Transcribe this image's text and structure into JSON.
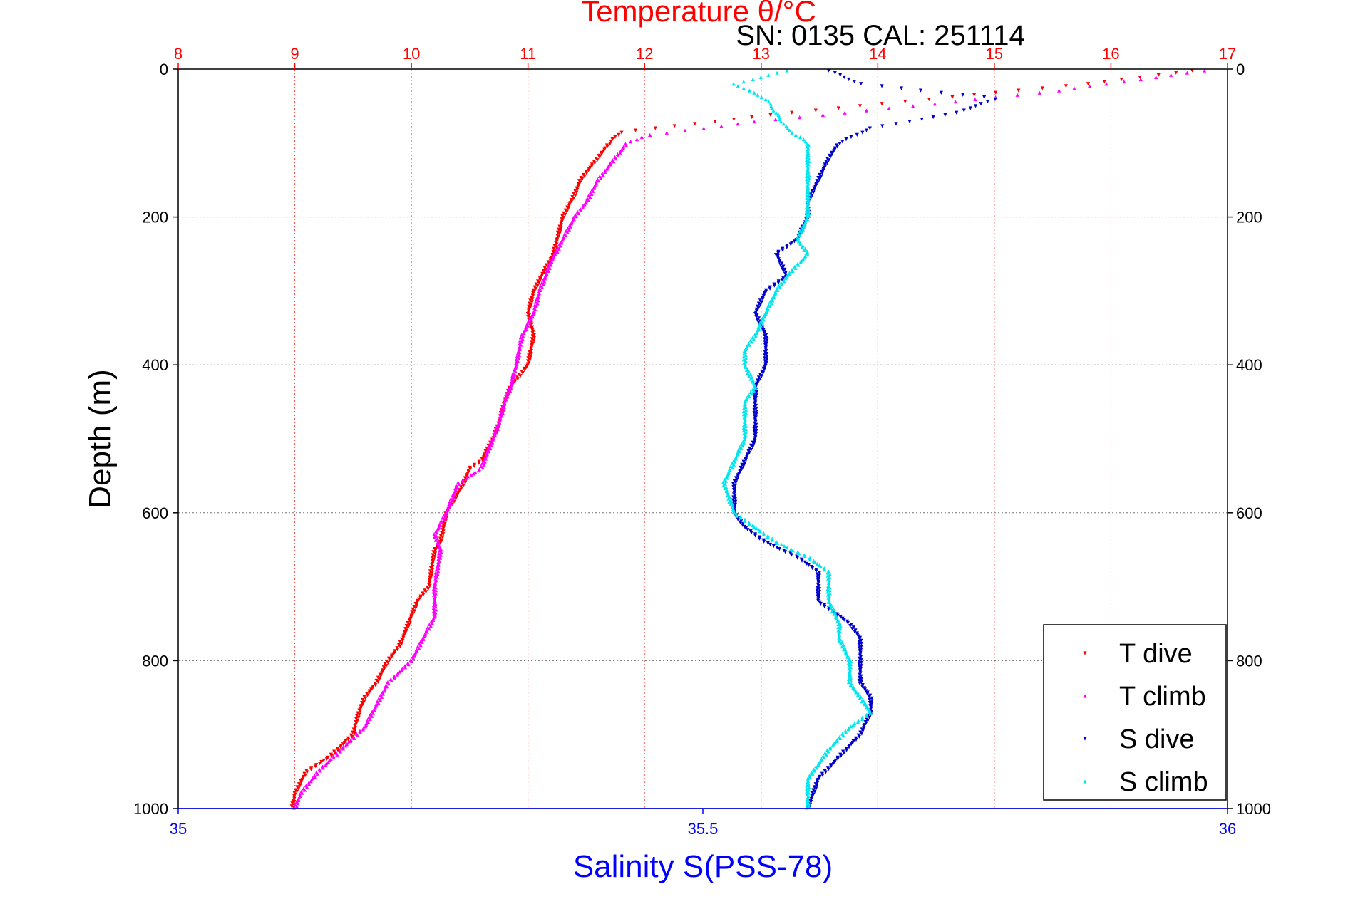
{
  "chart_data": {
    "type": "scatter",
    "title": "Temperature θ/°C",
    "subtitle": "SN: 0135  CAL: 251114",
    "xlabel_top": "Temperature θ/°C",
    "xlabel_bottom": "Salinity S(PSS-78)",
    "ylabel": "Depth (m)",
    "ylim": [
      1000,
      0
    ],
    "x_top_lim": [
      8,
      17
    ],
    "x_bottom_lim": [
      35,
      36
    ],
    "x_top_ticks": [
      8,
      9,
      10,
      11,
      12,
      13,
      14,
      15,
      16,
      17
    ],
    "x_bottom_ticks": [
      "35",
      "35.5",
      "36"
    ],
    "x_bottom_tick_values": [
      35,
      35.5,
      36
    ],
    "y_ticks": [
      0,
      200,
      400,
      600,
      800,
      1000
    ],
    "grid": true,
    "legend_position": "bottom-right",
    "colors": {
      "top_axis": "#ff0000",
      "bottom_axis": "#0000ff",
      "t_dive": "#ff0000",
      "t_climb": "#ff00ff",
      "s_dive": "#0000cc",
      "s_climb": "#00e5ee"
    },
    "series": [
      {
        "name": "T dive",
        "axis": "top",
        "color": "#ff0000",
        "depth": [
          2,
          20,
          40,
          60,
          80,
          85,
          100,
          120,
          150,
          170,
          200,
          230,
          250,
          270,
          300,
          330,
          360,
          400,
          430,
          450,
          480,
          500,
          530,
          540,
          560,
          600,
          640,
          650,
          700,
          720,
          740,
          760,
          780,
          800,
          830,
          850,
          870,
          900,
          930,
          950,
          980,
          1000
        ],
        "temp": [
          16.7,
          15.8,
          14.5,
          13.2,
          12.1,
          11.8,
          11.7,
          11.6,
          11.45,
          11.4,
          11.3,
          11.25,
          11.22,
          11.15,
          11.05,
          11.0,
          11.05,
          11.0,
          10.85,
          10.8,
          10.75,
          10.7,
          10.6,
          10.5,
          10.45,
          10.3,
          10.25,
          10.2,
          10.15,
          10.05,
          10.0,
          9.95,
          9.9,
          9.8,
          9.7,
          9.6,
          9.55,
          9.5,
          9.3,
          9.1,
          9.0,
          8.98
        ]
      },
      {
        "name": "T climb",
        "axis": "top",
        "color": "#ff00ff",
        "depth": [
          2,
          15,
          30,
          50,
          70,
          90,
          100,
          120,
          150,
          180,
          200,
          230,
          260,
          300,
          330,
          360,
          400,
          430,
          450,
          480,
          500,
          540,
          560,
          580,
          600,
          630,
          650,
          700,
          740,
          770,
          800,
          830,
          860,
          890,
          920,
          950,
          980,
          1000
        ],
        "temp": [
          16.8,
          16.2,
          15.5,
          14.3,
          13.0,
          12.0,
          11.85,
          11.75,
          11.6,
          11.5,
          11.4,
          11.3,
          11.2,
          11.1,
          11.05,
          10.95,
          10.9,
          10.85,
          10.8,
          10.75,
          10.7,
          10.6,
          10.4,
          10.35,
          10.3,
          10.2,
          10.25,
          10.2,
          10.2,
          10.1,
          10.0,
          9.8,
          9.7,
          9.6,
          9.4,
          9.2,
          9.05,
          9.0
        ]
      },
      {
        "name": "S dive",
        "axis": "bottom",
        "color": "#0000cc",
        "depth": [
          2,
          20,
          40,
          60,
          80,
          100,
          120,
          150,
          180,
          200,
          230,
          250,
          280,
          300,
          330,
          360,
          400,
          430,
          450,
          480,
          500,
          530,
          560,
          600,
          620,
          640,
          660,
          680,
          700,
          720,
          750,
          770,
          800,
          830,
          850,
          870,
          900,
          930,
          960,
          1000
        ],
        "sal": [
          35.62,
          35.65,
          35.78,
          35.74,
          35.66,
          35.63,
          35.62,
          35.61,
          35.6,
          35.6,
          35.59,
          35.57,
          35.58,
          35.56,
          35.55,
          35.56,
          35.56,
          35.55,
          35.55,
          35.55,
          35.55,
          35.54,
          35.53,
          35.53,
          35.54,
          35.56,
          35.59,
          35.61,
          35.61,
          35.61,
          35.64,
          35.65,
          35.65,
          35.65,
          35.66,
          35.66,
          35.65,
          35.63,
          35.61,
          35.6
        ]
      },
      {
        "name": "S climb",
        "axis": "bottom",
        "color": "#00e5ee",
        "depth": [
          2,
          20,
          40,
          60,
          80,
          100,
          120,
          150,
          180,
          200,
          230,
          250,
          280,
          300,
          330,
          360,
          380,
          400,
          430,
          450,
          480,
          500,
          530,
          560,
          600,
          620,
          640,
          660,
          680,
          700,
          720,
          750,
          770,
          800,
          830,
          850,
          870,
          890,
          920,
          960,
          1000
        ],
        "sal": [
          35.58,
          35.53,
          35.56,
          35.57,
          35.58,
          35.6,
          35.6,
          35.6,
          35.6,
          35.6,
          35.59,
          35.6,
          35.58,
          35.57,
          35.56,
          35.55,
          35.54,
          35.54,
          35.55,
          35.54,
          35.54,
          35.54,
          35.53,
          35.52,
          35.53,
          35.55,
          35.57,
          35.6,
          35.62,
          35.62,
          35.62,
          35.63,
          35.63,
          35.64,
          35.64,
          35.65,
          35.66,
          35.64,
          35.62,
          35.6,
          35.6
        ]
      }
    ]
  }
}
